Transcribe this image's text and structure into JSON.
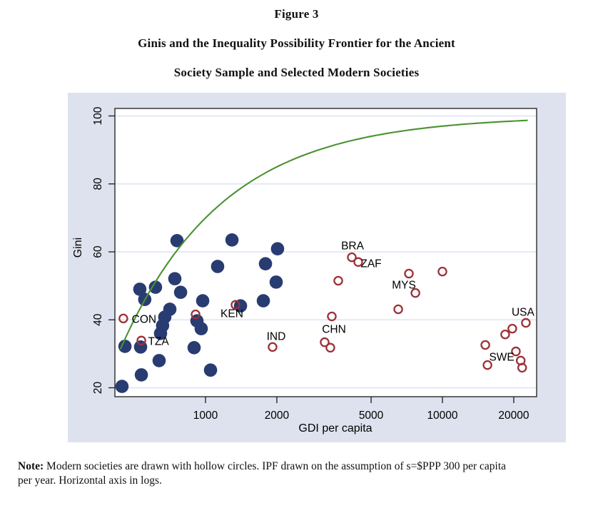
{
  "figure": {
    "title": "Figure 3",
    "subtitle_line1": "Ginis and the Inequality Possibility Frontier for the Ancient",
    "subtitle_line2": "Society Sample and Selected Modern Societies"
  },
  "note": {
    "label": "Note:",
    "text": " Modern societies are drawn with hollow circles. IPF drawn on the assumption of s=$PPP 300 per capita per year. Horizontal axis in logs."
  },
  "colors": {
    "card_background": "#dee2ee",
    "plot_background": "#ffffff",
    "gridline": "#dde3f2",
    "frame": "#1a1a1a",
    "ancient_marker": "#283c72",
    "modern_marker": "#9d3138",
    "ipf_curve": "#4a9232",
    "text": "#000000"
  },
  "chart_data": {
    "type": "scatter",
    "title": "",
    "xlabel": "GDI per capita",
    "ylabel": "Gini",
    "x_scale": "log",
    "x_ticks": [
      1000,
      2000,
      5000,
      10000,
      20000
    ],
    "y_ticks": [
      20,
      40,
      60,
      80,
      100
    ],
    "x_range": [
      414,
      25000
    ],
    "y_range": [
      17.2,
      102.2
    ],
    "grid": "horizontal-only",
    "legend": "none",
    "series": [
      {
        "name": "Ancient society sample",
        "marker": "filled-circle",
        "points": [
          [
            444,
            20.4
          ],
          [
            536,
            23.8
          ],
          [
            637,
            28.0
          ],
          [
            457,
            32.2
          ],
          [
            532,
            32.0
          ],
          [
            1050,
            25.2
          ],
          [
            895,
            31.8
          ],
          [
            707,
            43.1
          ],
          [
            673,
            40.8
          ],
          [
            659,
            38.3
          ],
          [
            646,
            36.0
          ],
          [
            528,
            49.0
          ],
          [
            554,
            46.0
          ],
          [
            615,
            49.6
          ],
          [
            742,
            52.1
          ],
          [
            785,
            48.1
          ],
          [
            758,
            63.3
          ],
          [
            1293,
            63.5
          ],
          [
            1125,
            55.7
          ],
          [
            973,
            45.6
          ],
          [
            920,
            39.7
          ],
          [
            959,
            37.4
          ],
          [
            1405,
            44.1
          ],
          [
            1754,
            45.6
          ],
          [
            2014,
            60.9
          ],
          [
            1791,
            56.5
          ],
          [
            1987,
            51.1
          ]
        ]
      },
      {
        "name": "Modern societies",
        "marker": "hollow-circle",
        "points": [
          {
            "v": 450,
            "gini": 40.4,
            "label": "CON",
            "dx": 29,
            "dy": 1
          },
          {
            "v": 536,
            "gini": 33.9,
            "label": "TZA",
            "dx": 24,
            "dy": 1
          },
          {
            "v": 908,
            "gini": 41.6,
            "label": "",
            "dx": 0,
            "dy": 0
          },
          {
            "v": 1338,
            "gini": 44.4,
            "label": "KEN",
            "dx": -5,
            "dy": 12
          },
          {
            "v": 1919,
            "gini": 32.0,
            "label": "IND",
            "dx": 5,
            "dy": -15
          },
          {
            "v": 3413,
            "gini": 41.0,
            "label": "CHN",
            "dx": 3,
            "dy": 18
          },
          {
            "v": 3184,
            "gini": 33.4,
            "label": "",
            "dx": 0,
            "dy": 0
          },
          {
            "v": 3365,
            "gini": 31.8,
            "label": "",
            "dx": 0,
            "dy": 0
          },
          {
            "v": 4145,
            "gini": 58.4,
            "label": "BRA",
            "dx": 1,
            "dy": -16
          },
          {
            "v": 4412,
            "gini": 57.0,
            "label": "ZAF",
            "dx": 18,
            "dy": 2
          },
          {
            "v": 3633,
            "gini": 51.5,
            "label": "",
            "dx": 0,
            "dy": 0
          },
          {
            "v": 7219,
            "gini": 53.6,
            "label": "MYS",
            "dx": -7,
            "dy": 16
          },
          {
            "v": 7689,
            "gini": 47.9,
            "label": "",
            "dx": 0,
            "dy": 0
          },
          {
            "v": 6508,
            "gini": 43.1,
            "label": "",
            "dx": 0,
            "dy": 0
          },
          {
            "v": 10000,
            "gini": 54.2,
            "label": "",
            "dx": 0,
            "dy": 0
          },
          {
            "v": 22500,
            "gini": 39.1,
            "label": "USA",
            "dx": -4,
            "dy": -15
          },
          {
            "v": 19720,
            "gini": 37.4,
            "label": "",
            "dx": 0,
            "dy": 0
          },
          {
            "v": 18400,
            "gini": 35.7,
            "label": "",
            "dx": 0,
            "dy": 0
          },
          {
            "v": 15170,
            "gini": 32.6,
            "label": "",
            "dx": 0,
            "dy": 0
          },
          {
            "v": 20420,
            "gini": 30.7,
            "label": "",
            "dx": 0,
            "dy": 0
          },
          {
            "v": 15490,
            "gini": 26.7,
            "label": "SWE",
            "dx": 20,
            "dy": -11
          },
          {
            "v": 21400,
            "gini": 28.0,
            "label": "",
            "dx": 0,
            "dy": 0
          },
          {
            "v": 21700,
            "gini": 25.9,
            "label": "",
            "dx": 0,
            "dy": 0
          }
        ]
      },
      {
        "name": "Inequality Possibility Frontier",
        "marker": "line",
        "formula": "gini = 100 * (1 - s / income)",
        "s": 300,
        "mu_range": [
          437,
          22900
        ]
      }
    ]
  }
}
